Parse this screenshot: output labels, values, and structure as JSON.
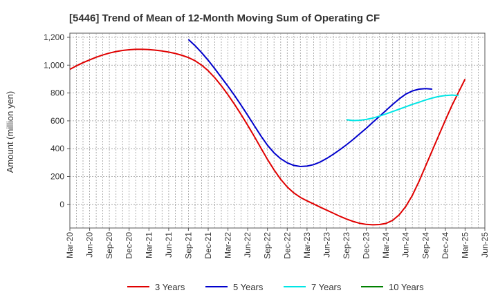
{
  "chart_data": {
    "type": "line",
    "title": "[5446]  Trend of Mean of 12-Month Moving Sum of Operating CF",
    "xlabel": "",
    "ylabel": "Amount (million yen)",
    "ylim": [
      -170,
      1230
    ],
    "yticks": [
      0,
      200,
      400,
      600,
      800,
      1000,
      1200
    ],
    "ytick_labels": [
      "0",
      "200",
      "400",
      "600",
      "800",
      "1,000",
      "1,200"
    ],
    "x_months": [
      "Mar-20",
      "Apr-20",
      "May-20",
      "Jun-20",
      "Jul-20",
      "Aug-20",
      "Sep-20",
      "Oct-20",
      "Nov-20",
      "Dec-20",
      "Jan-21",
      "Feb-21",
      "Mar-21",
      "Apr-21",
      "May-21",
      "Jun-21",
      "Jul-21",
      "Aug-21",
      "Sep-21",
      "Oct-21",
      "Nov-21",
      "Dec-21",
      "Jan-22",
      "Feb-22",
      "Mar-22",
      "Apr-22",
      "May-22",
      "Jun-22",
      "Jul-22",
      "Aug-22",
      "Sep-22",
      "Oct-22",
      "Nov-22",
      "Dec-22",
      "Jan-23",
      "Feb-23",
      "Mar-23",
      "Apr-23",
      "May-23",
      "Jun-23",
      "Jul-23",
      "Aug-23",
      "Sep-23",
      "Oct-23",
      "Nov-23",
      "Dec-23",
      "Jan-24",
      "Feb-24",
      "Mar-24",
      "Apr-24",
      "May-24",
      "Jun-24",
      "Jul-24",
      "Aug-24",
      "Sep-24",
      "Oct-24",
      "Nov-24",
      "Dec-24",
      "Jan-25",
      "Feb-25",
      "Mar-25",
      "Apr-25",
      "May-25",
      "Jun-25"
    ],
    "xtick_labels": [
      "Mar-20",
      "Jun-20",
      "Sep-20",
      "Dec-20",
      "Mar-21",
      "Jun-21",
      "Sep-21",
      "Dec-21",
      "Mar-22",
      "Jun-22",
      "Sep-22",
      "Dec-22",
      "Mar-23",
      "Jun-23",
      "Sep-23",
      "Dec-23",
      "Mar-24",
      "Jun-24",
      "Sep-24",
      "Dec-24",
      "Mar-25",
      "Jun-25"
    ],
    "grid": true,
    "legend_position": "bottom",
    "series": [
      {
        "name": "3 Years",
        "color": "#e00000",
        "start_index": 0,
        "values": [
          970,
          995,
          1018,
          1038,
          1057,
          1073,
          1087,
          1098,
          1106,
          1111,
          1114,
          1114,
          1112,
          1108,
          1102,
          1094,
          1084,
          1071,
          1055,
          1032,
          1000,
          960,
          910,
          852,
          787,
          718,
          645,
          568,
          488,
          405,
          323,
          248,
          180,
          125,
          82,
          50,
          25,
          3,
          -20,
          -42,
          -64,
          -86,
          -106,
          -123,
          -136,
          -144,
          -147,
          -145,
          -137,
          -115,
          -75,
          -15,
          65,
          165,
          275,
          385,
          495,
          605,
          710,
          805,
          900
        ]
      },
      {
        "name": "5 Years",
        "color": "#0000cc",
        "start_index": 18,
        "values": [
          1185,
          1140,
          1090,
          1035,
          975,
          912,
          848,
          782,
          712,
          640,
          565,
          492,
          425,
          370,
          328,
          298,
          280,
          272,
          275,
          285,
          304,
          330,
          360,
          393,
          428,
          466,
          506,
          547,
          590,
          632,
          675,
          718,
          758,
          792,
          815,
          828,
          832,
          828
        ]
      },
      {
        "name": "7 Years",
        "color": "#00e5e5",
        "start_index": 42,
        "values": [
          608,
          602,
          604,
          610,
          620,
          634,
          650,
          667,
          684,
          701,
          718,
          734,
          750,
          764,
          775,
          782,
          785,
          782
        ]
      },
      {
        "name": "10 Years",
        "color": "#008000",
        "start_index": 0,
        "values": []
      }
    ]
  }
}
